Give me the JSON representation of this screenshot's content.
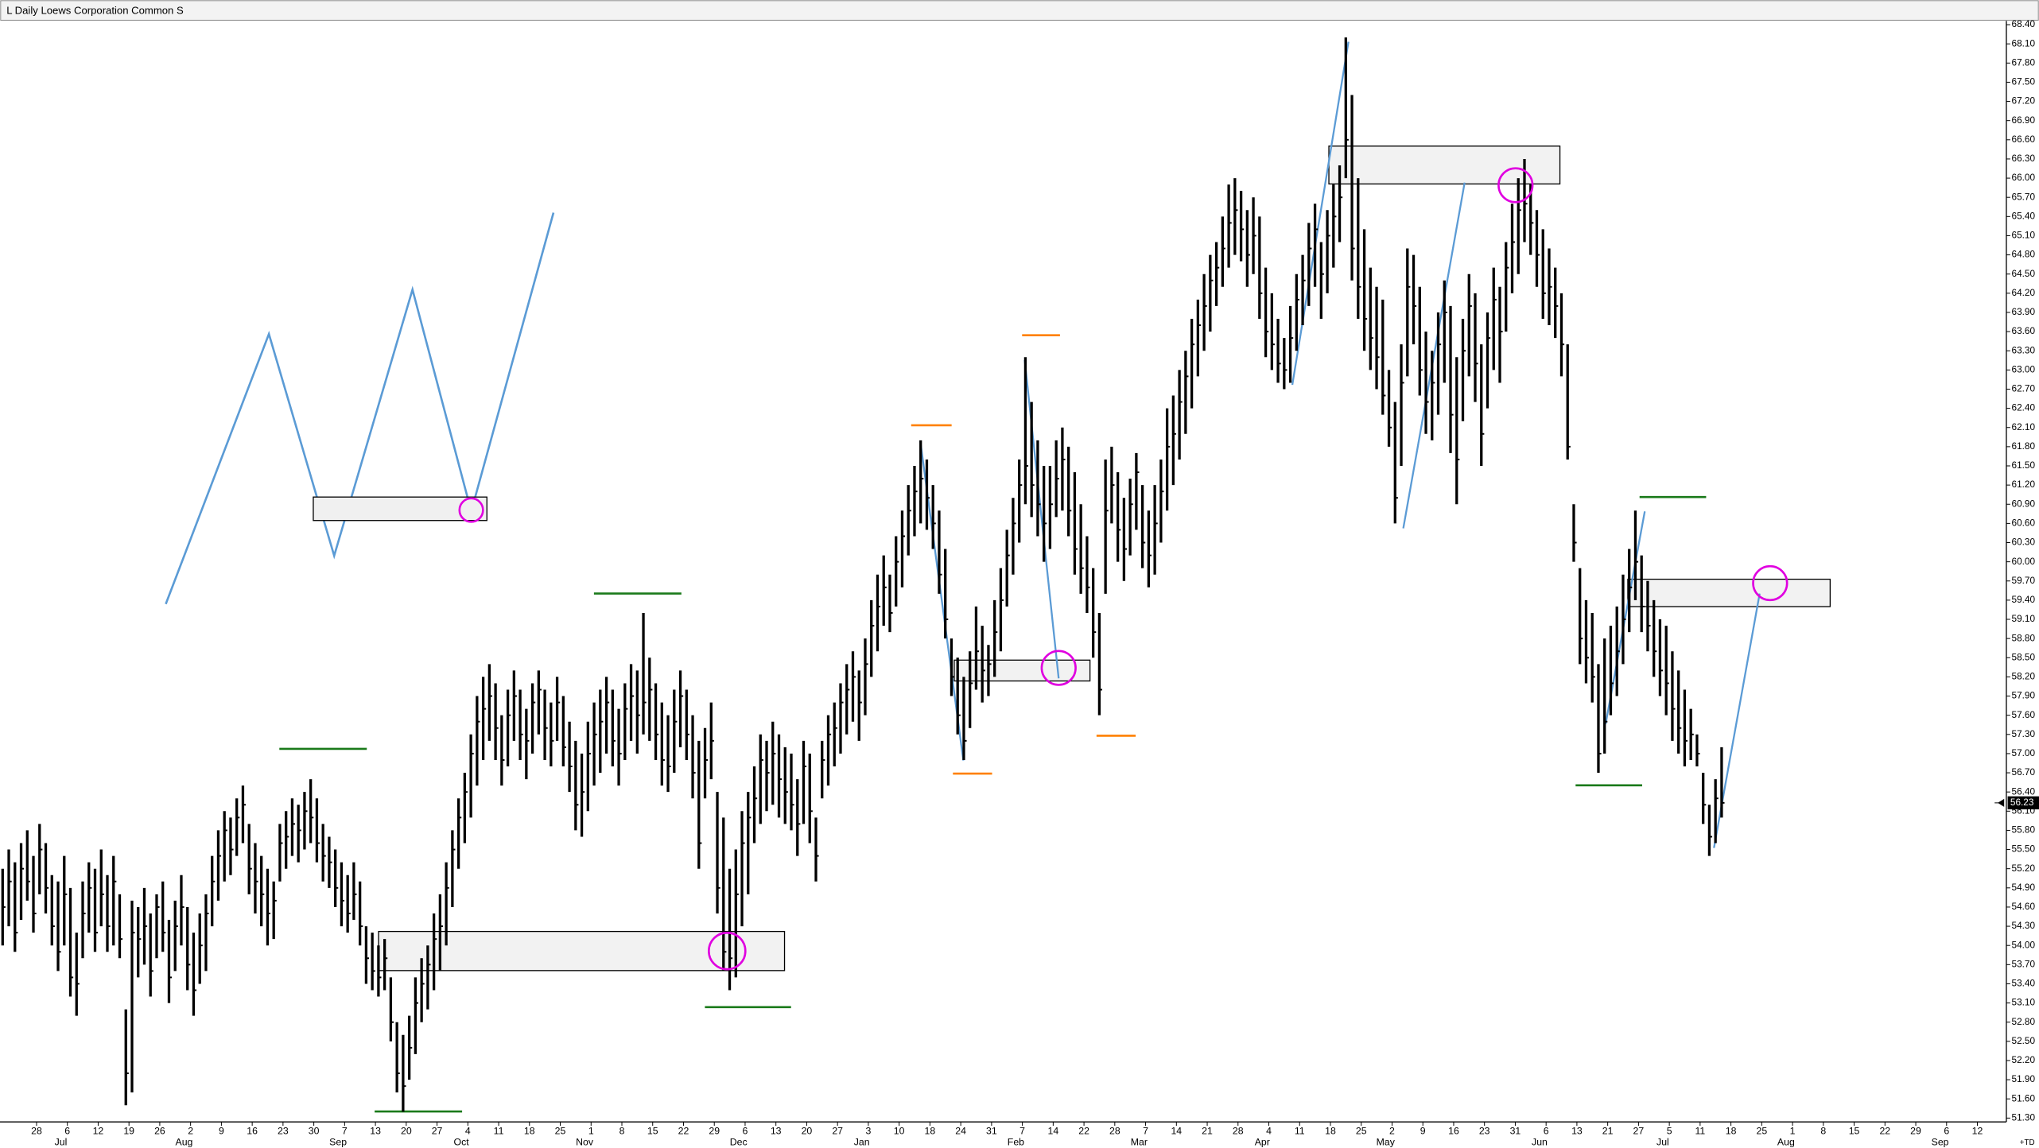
{
  "chart_data": {
    "type": "ohlc",
    "title": "L Daily Loews Corporation Common S",
    "ohlc": {
      "color": "#000000",
      "high": [
        55.2,
        55.5,
        55.3,
        55.6,
        55.8,
        55.4,
        55.9,
        55.6,
        55.1,
        55.0,
        55.4,
        54.9,
        54.2,
        55.0,
        55.3,
        55.2,
        55.5,
        55.1,
        55.4,
        54.8,
        53.0,
        54.7,
        54.6,
        54.9,
        54.5,
        54.8,
        55.0,
        54.4,
        54.7,
        55.1,
        54.6,
        54.2,
        54.5,
        54.8,
        55.4,
        55.8,
        56.1,
        56.0,
        56.3,
        56.5,
        55.9,
        55.6,
        55.4,
        55.2,
        55.0,
        55.9,
        56.1,
        56.3,
        56.2,
        56.4,
        56.6,
        56.3,
        55.9,
        55.7,
        55.5,
        55.3,
        55.1,
        55.3,
        55.0,
        54.3,
        54.2,
        54.0,
        54.1,
        53.5,
        52.8,
        52.6,
        52.9,
        53.5,
        53.8,
        54.0,
        54.5,
        54.8,
        55.3,
        55.8,
        56.3,
        56.7,
        57.3,
        57.9,
        58.2,
        58.4,
        58.1,
        57.6,
        58.0,
        58.3,
        58.0,
        57.7,
        58.1,
        58.3,
        58.0,
        57.8,
        58.2,
        57.9,
        57.5,
        57.2,
        57.0,
        57.5,
        57.8,
        58.0,
        58.2,
        58.0,
        57.7,
        58.1,
        58.4,
        58.3,
        59.2,
        58.5,
        58.1,
        57.8,
        57.6,
        58.0,
        58.3,
        58.0,
        57.6,
        57.2,
        57.4,
        57.8,
        56.4,
        56.0,
        55.2,
        55.5,
        56.1,
        56.4,
        56.8,
        57.3,
        57.2,
        57.5,
        57.3,
        57.1,
        57.0,
        56.6,
        57.2,
        57.0,
        56.0,
        57.2,
        57.6,
        57.8,
        58.1,
        58.4,
        58.6,
        58.3,
        58.8,
        59.4,
        59.8,
        60.1,
        59.8,
        60.4,
        60.8,
        61.2,
        61.5,
        61.9,
        61.6,
        61.2,
        60.8,
        60.2,
        58.8,
        58.5,
        58.2,
        58.6,
        59.3,
        59.0,
        58.7,
        59.4,
        59.9,
        60.5,
        61.0,
        61.6,
        63.2,
        62.5,
        61.9,
        61.5,
        61.5,
        61.9,
        62.1,
        61.8,
        61.4,
        60.9,
        60.4,
        59.9,
        59.2,
        61.6,
        61.8,
        61.4,
        61.0,
        61.3,
        61.7,
        61.2,
        60.8,
        61.2,
        61.6,
        62.4,
        62.6,
        63.0,
        63.3,
        63.8,
        64.1,
        64.5,
        64.8,
        65.0,
        65.4,
        65.9,
        66.0,
        65.8,
        65.5,
        65.7,
        65.4,
        64.6,
        64.2,
        63.8,
        63.5,
        64.0,
        64.5,
        64.8,
        65.3,
        65.6,
        65.0,
        65.5,
        65.9,
        66.2,
        68.2,
        67.3,
        66.0,
        65.2,
        64.6,
        64.3,
        64.1,
        63.0,
        62.5,
        63.4,
        64.9,
        64.8,
        64.3,
        63.6,
        63.3,
        63.9,
        64.4,
        64.0,
        63.2,
        63.8,
        64.5,
        64.2,
        63.4,
        63.9,
        64.6,
        64.3,
        65.0,
        65.6,
        66.0,
        66.3,
        65.9,
        65.5,
        65.2,
        64.9,
        64.6,
        64.2,
        63.4,
        60.9,
        59.9,
        59.4,
        59.2,
        58.4,
        58.8,
        59.0,
        59.3,
        59.8,
        60.2,
        60.8,
        60.1,
        59.7,
        59.4,
        59.1,
        59.0,
        58.6,
        58.3,
        58.0,
        57.7,
        57.3,
        56.7,
        56.2,
        56.6,
        57.1
      ],
      "low": [
        54.0,
        54.3,
        53.9,
        54.4,
        54.7,
        54.2,
        54.8,
        54.5,
        54.0,
        53.6,
        54.0,
        53.2,
        52.9,
        53.8,
        54.2,
        53.9,
        54.3,
        53.9,
        54.0,
        53.8,
        51.5,
        51.7,
        53.5,
        53.7,
        53.2,
        53.8,
        53.9,
        53.1,
        53.6,
        54.0,
        53.3,
        52.9,
        53.4,
        53.6,
        54.3,
        54.7,
        55.0,
        55.1,
        55.4,
        55.6,
        54.8,
        54.5,
        54.3,
        54.0,
        54.1,
        55.0,
        55.2,
        55.4,
        55.3,
        55.5,
        55.6,
        55.3,
        55.0,
        54.9,
        54.6,
        54.3,
        54.2,
        54.4,
        54.0,
        53.4,
        53.3,
        53.2,
        53.3,
        52.5,
        51.7,
        51.4,
        51.9,
        52.3,
        52.8,
        53.0,
        53.3,
        53.6,
        54.0,
        54.6,
        55.2,
        55.6,
        56.0,
        56.5,
        56.9,
        57.2,
        56.9,
        56.5,
        56.8,
        57.2,
        56.9,
        56.6,
        57.0,
        57.3,
        56.9,
        56.8,
        57.2,
        56.8,
        56.4,
        55.8,
        55.7,
        56.1,
        56.5,
        56.7,
        57.0,
        56.8,
        56.5,
        56.9,
        57.2,
        57.0,
        57.3,
        57.2,
        56.9,
        56.5,
        56.4,
        56.7,
        57.1,
        56.9,
        56.3,
        55.2,
        56.3,
        56.6,
        54.5,
        53.6,
        53.3,
        53.5,
        54.3,
        54.8,
        55.6,
        55.9,
        56.1,
        56.2,
        56.0,
        55.9,
        55.8,
        55.4,
        55.9,
        55.6,
        55.0,
        56.3,
        56.5,
        56.8,
        57.0,
        57.3,
        57.5,
        57.2,
        57.6,
        58.2,
        58.6,
        59.0,
        58.9,
        59.3,
        59.6,
        60.1,
        60.4,
        60.6,
        60.5,
        60.2,
        59.5,
        58.8,
        57.9,
        57.3,
        56.9,
        57.4,
        58.0,
        57.8,
        57.9,
        58.2,
        58.6,
        59.3,
        59.8,
        60.3,
        60.9,
        60.7,
        60.4,
        60.0,
        60.2,
        60.7,
        60.8,
        60.4,
        59.8,
        59.5,
        59.2,
        58.5,
        57.6,
        59.5,
        60.6,
        60.0,
        59.7,
        60.1,
        60.5,
        59.9,
        59.6,
        59.8,
        60.3,
        60.8,
        61.2,
        61.6,
        62.0,
        62.4,
        62.9,
        63.3,
        63.6,
        64.0,
        64.3,
        64.6,
        64.8,
        64.7,
        64.3,
        64.5,
        63.8,
        63.2,
        63.0,
        62.8,
        62.7,
        62.8,
        63.3,
        63.7,
        64.0,
        64.3,
        63.8,
        64.2,
        64.6,
        65.0,
        66.0,
        64.4,
        63.8,
        63.3,
        63.0,
        62.7,
        62.3,
        61.8,
        60.6,
        61.5,
        62.9,
        63.4,
        62.6,
        62.0,
        61.9,
        62.3,
        62.8,
        61.7,
        60.9,
        62.2,
        62.9,
        62.5,
        61.5,
        62.4,
        63.0,
        62.8,
        63.6,
        64.2,
        64.5,
        65.0,
        64.8,
        64.3,
        63.8,
        63.7,
        63.5,
        62.9,
        61.6,
        60.0,
        58.4,
        58.1,
        57.8,
        56.7,
        57.0,
        57.6,
        57.9,
        58.4,
        58.9,
        59.4,
        58.9,
        58.6,
        58.2,
        57.9,
        57.6,
        57.2,
        57.0,
        56.8,
        56.9,
        56.8,
        55.9,
        55.4,
        55.6,
        56.0
      ],
      "close": [
        54.6,
        55.0,
        54.2,
        55.2,
        55.0,
        54.5,
        55.5,
        54.9,
        54.3,
        53.9,
        54.8,
        53.5,
        53.4,
        54.5,
        54.9,
        54.2,
        54.8,
        54.3,
        55.0,
        54.1,
        52.0,
        54.2,
        54.1,
        54.3,
        53.6,
        54.6,
        54.2,
        53.5,
        54.3,
        54.6,
        53.7,
        53.3,
        54.0,
        54.5,
        55.0,
        55.4,
        55.8,
        55.5,
        56.0,
        56.2,
        55.2,
        55.0,
        54.8,
        54.5,
        54.7,
        55.6,
        55.7,
        55.9,
        55.8,
        56.1,
        56.0,
        55.6,
        55.4,
        55.3,
        54.9,
        54.7,
        54.5,
        54.8,
        54.3,
        53.8,
        53.6,
        53.5,
        53.8,
        52.8,
        52.0,
        51.8,
        52.4,
        53.1,
        53.4,
        53.7,
        54.1,
        54.3,
        54.9,
        55.5,
        56.0,
        56.4,
        57.0,
        57.5,
        57.7,
        57.9,
        57.4,
        56.9,
        57.6,
        57.9,
        57.3,
        57.2,
        57.8,
        58.0,
        57.4,
        57.2,
        57.8,
        57.1,
        56.8,
        56.2,
        56.4,
        57.0,
        57.3,
        57.5,
        57.8,
        57.2,
        57.0,
        57.7,
        57.9,
        57.6,
        57.8,
        58.0,
        57.3,
        56.9,
        56.8,
        57.5,
        57.9,
        57.3,
        56.7,
        55.6,
        56.9,
        57.2,
        54.9,
        53.9,
        53.8,
        54.8,
        55.6,
        56.0,
        56.3,
        56.9,
        56.7,
        57.0,
        56.6,
        56.4,
        56.2,
        55.9,
        56.8,
        56.1,
        55.4,
        56.9,
        57.3,
        57.4,
        57.8,
        58.0,
        58.2,
        57.8,
        58.4,
        59.0,
        59.3,
        59.6,
        59.2,
        60.0,
        60.4,
        60.8,
        61.1,
        61.3,
        61.0,
        60.6,
        59.8,
        59.1,
        58.2,
        57.6,
        57.2,
        58.1,
        58.6,
        58.3,
        58.4,
        58.9,
        59.4,
        60.1,
        60.6,
        61.2,
        61.5,
        61.2,
        60.9,
        60.6,
        60.9,
        61.3,
        61.6,
        60.8,
        60.2,
        59.9,
        59.6,
        58.9,
        58.0,
        60.8,
        61.2,
        60.5,
        60.2,
        60.9,
        61.4,
        60.3,
        60.1,
        60.6,
        61.1,
        61.8,
        62.0,
        62.5,
        62.9,
        63.4,
        63.7,
        64.0,
        64.4,
        64.6,
        64.9,
        65.3,
        65.5,
        65.2,
        64.8,
        65.1,
        64.2,
        63.6,
        63.4,
        63.1,
        63.0,
        63.5,
        64.1,
        64.4,
        64.9,
        65.2,
        64.5,
        65.1,
        65.4,
        65.7,
        66.6,
        64.9,
        64.3,
        63.8,
        63.5,
        63.2,
        62.6,
        62.1,
        61.0,
        62.8,
        64.3,
        64.0,
        63.0,
        62.5,
        62.8,
        63.4,
        63.9,
        62.3,
        61.6,
        63.3,
        64.0,
        63.1,
        62.0,
        63.5,
        64.1,
        63.6,
        64.6,
        65.0,
        65.5,
        65.6,
        65.3,
        64.8,
        64.2,
        64.3,
        64.0,
        63.4,
        61.8,
        60.3,
        58.8,
        58.5,
        58.2,
        57.0,
        57.5,
        58.1,
        58.6,
        59.1,
        59.6,
        60.0,
        59.3,
        59.0,
        58.6,
        58.3,
        58.1,
        57.7,
        57.4,
        57.2,
        57.3,
        57.0,
        56.2,
        55.7,
        56.3,
        56.23
      ]
    },
    "last_price": 56.23,
    "ylim": [
      51.24,
      68.48
    ],
    "yticks": [
      {
        "value": 51.3,
        "label": "51.30"
      },
      {
        "value": 51.6,
        "label": "51.60"
      },
      {
        "value": 51.9,
        "label": "51.90"
      },
      {
        "value": 52.2,
        "label": "52.20"
      },
      {
        "value": 52.5,
        "label": "52.50"
      },
      {
        "value": 52.8,
        "label": "52.80"
      },
      {
        "value": 53.1,
        "label": "53.10"
      },
      {
        "value": 53.4,
        "label": "53.40"
      },
      {
        "value": 53.7,
        "label": "53.70"
      },
      {
        "value": 54.0,
        "label": "54.00"
      },
      {
        "value": 54.3,
        "label": "54.30"
      },
      {
        "value": 54.6,
        "label": "54.60"
      },
      {
        "value": 54.9,
        "label": "54.90"
      },
      {
        "value": 55.2,
        "label": "55.20"
      },
      {
        "value": 55.5,
        "label": "55.50"
      },
      {
        "value": 55.8,
        "label": "55.80"
      },
      {
        "value": 56.1,
        "label": "56.10"
      },
      {
        "value": 56.4,
        "label": "56.40"
      },
      {
        "value": 56.7,
        "label": "56.70"
      },
      {
        "value": 57.0,
        "label": "57.00"
      },
      {
        "value": 57.3,
        "label": "57.30"
      },
      {
        "value": 57.6,
        "label": "57.60"
      },
      {
        "value": 57.9,
        "label": "57.90"
      },
      {
        "value": 58.2,
        "label": "58.20"
      },
      {
        "value": 58.5,
        "label": "58.50"
      },
      {
        "value": 58.8,
        "label": "58.80"
      },
      {
        "value": 59.1,
        "label": "59.10"
      },
      {
        "value": 59.4,
        "label": "59.40"
      },
      {
        "value": 59.7,
        "label": "59.70"
      },
      {
        "value": 60.0,
        "label": "60.00"
      },
      {
        "value": 60.3,
        "label": "60.30"
      },
      {
        "value": 60.6,
        "label": "60.60"
      },
      {
        "value": 60.9,
        "label": "60.90"
      },
      {
        "value": 61.2,
        "label": "61.20"
      },
      {
        "value": 61.5,
        "label": "61.50"
      },
      {
        "value": 61.8,
        "label": "61.80"
      },
      {
        "value": 62.1,
        "label": "62.10"
      },
      {
        "value": 62.4,
        "label": "62.40"
      },
      {
        "value": 62.7,
        "label": "62.70"
      },
      {
        "value": 63.0,
        "label": "63.00"
      },
      {
        "value": 63.3,
        "label": "63.30"
      },
      {
        "value": 63.6,
        "label": "63.60"
      },
      {
        "value": 63.9,
        "label": "63.90"
      },
      {
        "value": 64.2,
        "label": "64.20"
      },
      {
        "value": 64.5,
        "label": "64.50"
      },
      {
        "value": 64.8,
        "label": "64.80"
      },
      {
        "value": 65.1,
        "label": "65.10"
      },
      {
        "value": 65.4,
        "label": "65.40"
      },
      {
        "value": 65.7,
        "label": "65.70"
      },
      {
        "value": 66.0,
        "label": "66.00"
      },
      {
        "value": 66.3,
        "label": "66.30"
      },
      {
        "value": 66.6,
        "label": "66.60"
      },
      {
        "value": 66.9,
        "label": "66.90"
      },
      {
        "value": 67.2,
        "label": "67.20"
      },
      {
        "value": 67.5,
        "label": "67.50"
      },
      {
        "value": 67.8,
        "label": "67.80"
      },
      {
        "value": 68.1,
        "label": "68.10"
      },
      {
        "value": 68.4,
        "label": "68.40"
      }
    ],
    "x_day_labels": [
      "28",
      "6",
      "12",
      "19",
      "26",
      "2",
      "9",
      "16",
      "23",
      "30",
      "7",
      "13",
      "20",
      "27",
      "4",
      "11",
      "18",
      "25",
      "1",
      "8",
      "15",
      "22",
      "29",
      "6",
      "13",
      "20",
      "27",
      "3",
      "10",
      "18",
      "24",
      "31",
      "7",
      "14",
      "22",
      "28",
      "7",
      "14",
      "21",
      "28",
      "4",
      "11",
      "18",
      "25",
      "2",
      "9",
      "16",
      "23",
      "31",
      "6",
      "13",
      "21",
      "27",
      "5",
      "11",
      "18",
      "25",
      "1",
      "8",
      "15",
      "22",
      "29",
      "6",
      "12"
    ],
    "x_month_labels": [
      null,
      "Jul",
      null,
      null,
      null,
      "Aug",
      null,
      null,
      null,
      null,
      "Sep",
      null,
      null,
      null,
      "Oct",
      null,
      null,
      null,
      "Nov",
      null,
      null,
      null,
      null,
      "Dec",
      null,
      null,
      null,
      "Jan",
      null,
      null,
      null,
      null,
      "Feb",
      null,
      null,
      null,
      "Mar",
      null,
      null,
      null,
      "Apr",
      null,
      null,
      null,
      "May",
      null,
      null,
      null,
      null,
      "Jun",
      null,
      null,
      null,
      "Jul",
      null,
      null,
      null,
      "Aug",
      null,
      null,
      null,
      null,
      "Sep",
      null
    ],
    "corner_label": "+TD"
  }
}
